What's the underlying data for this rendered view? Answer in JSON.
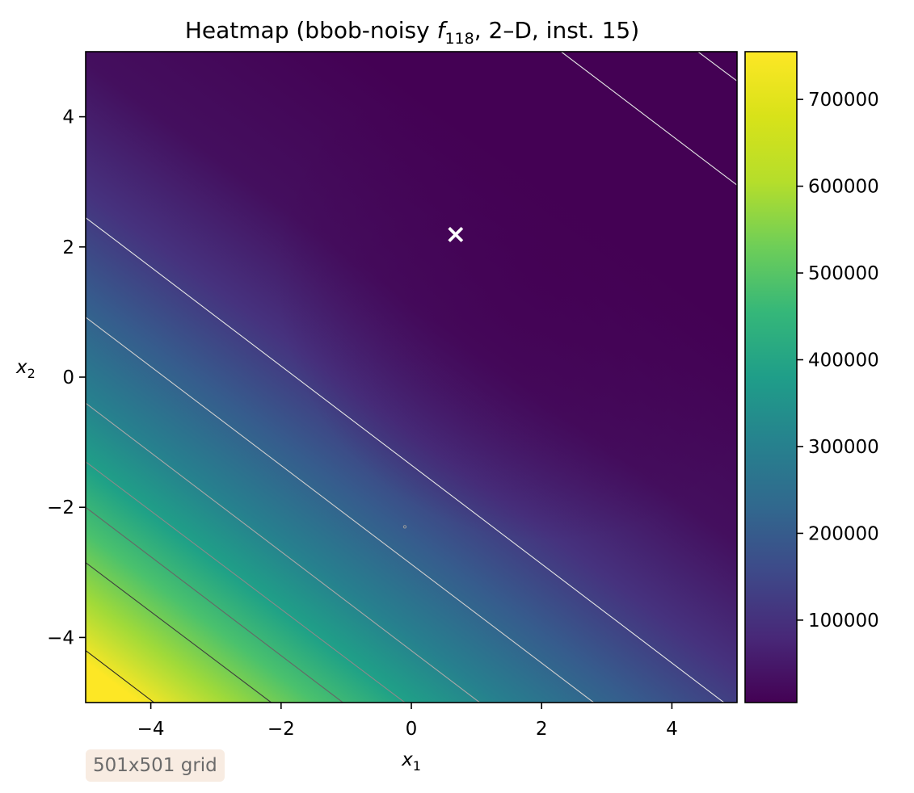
{
  "chart_data": {
    "type": "heatmap",
    "title_prefix": "Heatmap (bbob-noisy ",
    "title_f": "f",
    "title_sub": "118",
    "title_suffix": ", 2–D, inst. 15)",
    "xlabel": "x",
    "xlabel_sub": "1",
    "ylabel": "x",
    "ylabel_sub": "2",
    "xlim": [
      -5,
      5
    ],
    "ylim": [
      -5,
      5
    ],
    "xticks": [
      -4,
      -2,
      0,
      2,
      4
    ],
    "yticks": [
      -4,
      -2,
      0,
      2,
      4
    ],
    "xtick_labels": [
      "−4",
      "−2",
      "0",
      "2",
      "4"
    ],
    "ytick_labels": [
      "−4",
      "−2",
      "0",
      "2",
      "4"
    ],
    "colormap": "viridis",
    "color_range": [
      5000,
      755000
    ],
    "colorbar_ticks": [
      100000,
      200000,
      300000,
      400000,
      500000,
      600000,
      700000
    ],
    "colorbar_labels": [
      "100000",
      "200000",
      "300000",
      "400000",
      "500000",
      "600000",
      "700000"
    ],
    "optimum_marker": {
      "x": 0.68,
      "y": 2.2,
      "symbol": "×",
      "color": "#ffffff"
    },
    "minor_point": {
      "x": -0.1,
      "y": -2.3
    },
    "contour_lines": [
      {
        "p1": [
          -5,
          2.45
        ],
        "p2": [
          4.8,
          -5
        ],
        "color": "#e6e6e6"
      },
      {
        "p1": [
          -5,
          0.92
        ],
        "p2": [
          2.8,
          -5
        ],
        "color": "#cfcfcf"
      },
      {
        "p1": [
          -5,
          -0.4
        ],
        "p2": [
          1.05,
          -5
        ],
        "color": "#a8a8a8"
      },
      {
        "p1": [
          -5,
          -1.3
        ],
        "p2": [
          -0.1,
          -5
        ],
        "color": "#8a8a8a"
      },
      {
        "p1": [
          -5,
          -2.0
        ],
        "p2": [
          -1.05,
          -5
        ],
        "color": "#666666"
      },
      {
        "p1": [
          -5,
          -2.85
        ],
        "p2": [
          -2.15,
          -5
        ],
        "color": "#3d3d3d"
      },
      {
        "p1": [
          -5,
          -4.2
        ],
        "p2": [
          -3.95,
          -5
        ],
        "color": "#262626"
      },
      {
        "p1": [
          2.3,
          5
        ],
        "p2": [
          5,
          2.95
        ],
        "color": "#e6e6e6"
      },
      {
        "p1": [
          4.4,
          5
        ],
        "p2": [
          5,
          4.55
        ],
        "color": "#e6e6e6"
      }
    ]
  },
  "footer": {
    "grid_label": "501x501 grid"
  }
}
